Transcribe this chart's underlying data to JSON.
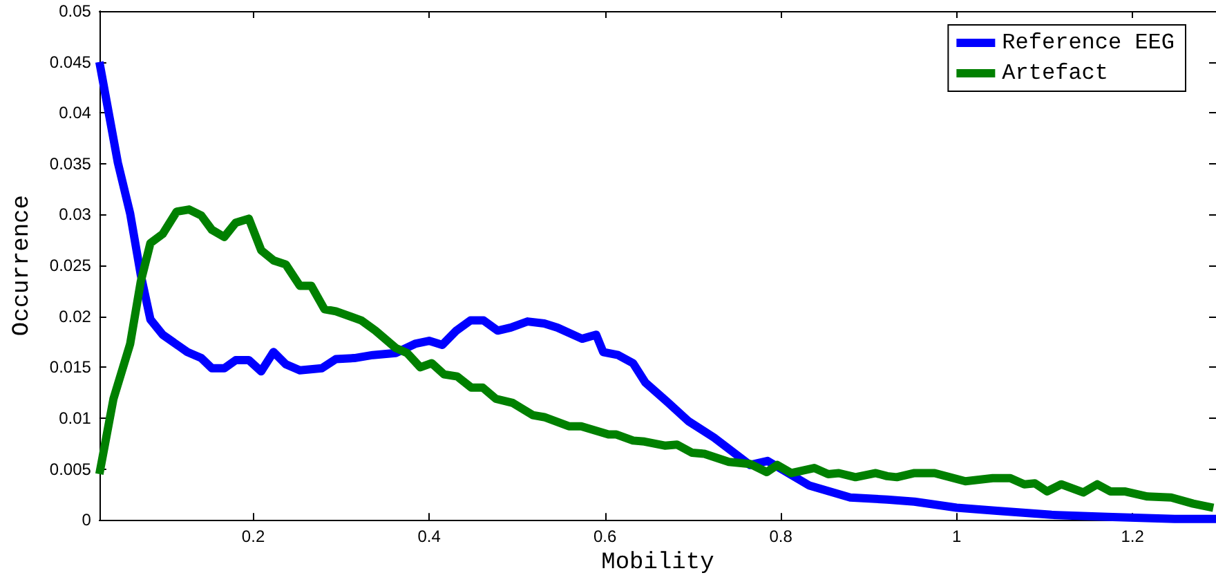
{
  "chart_data": {
    "type": "line",
    "xlabel": "Mobility",
    "ylabel": "Occurrence",
    "xlim": [
      0.025,
      1.295
    ],
    "xticks": [
      0.2,
      0.4,
      0.6,
      0.8,
      1,
      1.2
    ],
    "ylim": [
      0,
      0.05
    ],
    "yticks": [
      0,
      0.005,
      0.01,
      0.015,
      0.02,
      0.025,
      0.03,
      0.035,
      0.04,
      0.045,
      0.05
    ],
    "grid": false,
    "legend": "top right",
    "marker": "none",
    "line_style": "solid",
    "series": [
      {
        "name": "Reference EEG",
        "color": "#0000ff",
        "x": [
          0.025,
          0.046,
          0.06,
          0.072,
          0.083,
          0.097,
          0.125,
          0.141,
          0.153,
          0.167,
          0.18,
          0.195,
          0.209,
          0.223,
          0.237,
          0.253,
          0.278,
          0.294,
          0.315,
          0.336,
          0.362,
          0.384,
          0.4,
          0.415,
          0.431,
          0.447,
          0.462,
          0.478,
          0.493,
          0.512,
          0.531,
          0.546,
          0.574,
          0.59,
          0.598,
          0.615,
          0.632,
          0.646,
          0.671,
          0.695,
          0.724,
          0.765,
          0.785,
          0.832,
          0.879,
          0.921,
          0.952,
          1.0,
          1.046,
          1.108,
          1.171,
          1.248,
          1.295
        ],
        "values": [
          0.045,
          0.0351,
          0.0301,
          0.0241,
          0.0197,
          0.0182,
          0.0165,
          0.0159,
          0.0149,
          0.0149,
          0.0157,
          0.0157,
          0.0146,
          0.0165,
          0.0153,
          0.0147,
          0.0149,
          0.0158,
          0.0159,
          0.0162,
          0.0164,
          0.0173,
          0.0176,
          0.0172,
          0.0186,
          0.0196,
          0.0196,
          0.0186,
          0.0189,
          0.0195,
          0.0193,
          0.0189,
          0.0178,
          0.0182,
          0.0165,
          0.0162,
          0.0154,
          0.0135,
          0.0116,
          0.0097,
          0.0081,
          0.0054,
          0.0058,
          0.0034,
          0.0022,
          0.002,
          0.0018,
          0.0012,
          0.0009,
          0.0005,
          0.0003,
          0.0001,
          0.0001
        ]
      },
      {
        "name": "Artefact",
        "color": "#008000",
        "x": [
          0.025,
          0.041,
          0.06,
          0.072,
          0.083,
          0.097,
          0.113,
          0.127,
          0.141,
          0.153,
          0.167,
          0.18,
          0.195,
          0.209,
          0.223,
          0.237,
          0.253,
          0.266,
          0.281,
          0.294,
          0.323,
          0.339,
          0.362,
          0.375,
          0.39,
          0.403,
          0.417,
          0.432,
          0.448,
          0.461,
          0.476,
          0.495,
          0.518,
          0.531,
          0.559,
          0.573,
          0.604,
          0.613,
          0.632,
          0.645,
          0.668,
          0.682,
          0.699,
          0.713,
          0.741,
          0.765,
          0.784,
          0.796,
          0.812,
          0.838,
          0.854,
          0.866,
          0.885,
          0.908,
          0.921,
          0.932,
          0.952,
          0.975,
          1.01,
          1.041,
          1.061,
          1.077,
          1.089,
          1.103,
          1.119,
          1.144,
          1.16,
          1.175,
          1.191,
          1.217,
          1.244,
          1.269,
          1.292
        ],
        "values": [
          0.0045,
          0.0119,
          0.0173,
          0.0234,
          0.0272,
          0.0281,
          0.0303,
          0.0305,
          0.0299,
          0.0285,
          0.0278,
          0.0292,
          0.0296,
          0.0265,
          0.0255,
          0.0251,
          0.023,
          0.023,
          0.0207,
          0.0205,
          0.0196,
          0.0186,
          0.0169,
          0.0164,
          0.015,
          0.0154,
          0.0143,
          0.0141,
          0.013,
          0.013,
          0.0119,
          0.0115,
          0.0103,
          0.0101,
          0.0092,
          0.0092,
          0.0084,
          0.0084,
          0.0078,
          0.0077,
          0.0073,
          0.0074,
          0.0066,
          0.0065,
          0.0057,
          0.0055,
          0.0047,
          0.0054,
          0.0046,
          0.0051,
          0.0045,
          0.0046,
          0.0042,
          0.0046,
          0.0043,
          0.0042,
          0.0046,
          0.0046,
          0.0038,
          0.0041,
          0.0041,
          0.0035,
          0.0036,
          0.0028,
          0.0035,
          0.0027,
          0.0035,
          0.0028,
          0.0028,
          0.0023,
          0.0022,
          0.0016,
          0.0012
        ]
      }
    ]
  }
}
